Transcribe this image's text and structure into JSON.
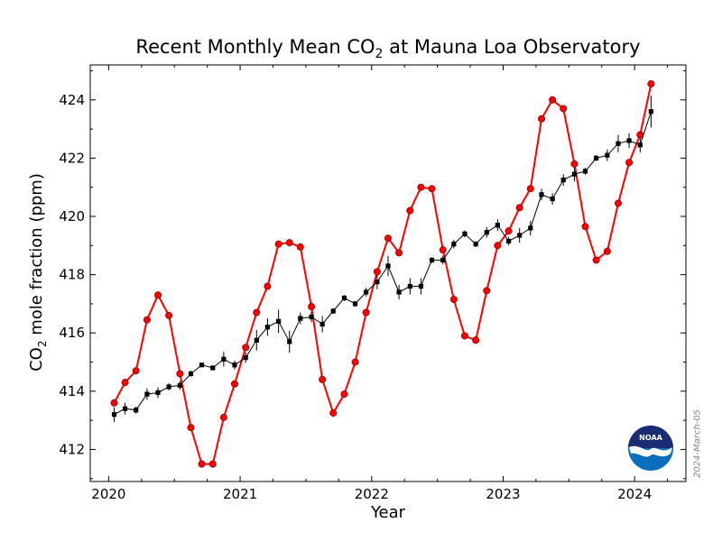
{
  "chart_data": {
    "type": "line",
    "title_prefix": "Recent Monthly Mean CO",
    "title_sub": "2",
    "title_suffix": " at Mauna Loa Observatory",
    "xlabel": "Year",
    "ylabel_prefix": "CO",
    "ylabel_sub": "2",
    "ylabel_suffix": " mole fraction (ppm)",
    "xlim": [
      2019.86,
      2024.39
    ],
    "ylim": [
      410.9,
      425.2
    ],
    "x_ticks": [
      2020,
      2021,
      2022,
      2023,
      2024
    ],
    "y_ticks": [
      412,
      414,
      416,
      418,
      420,
      422,
      424
    ],
    "stamp": "2024-March-05",
    "grid": false,
    "series": [
      {
        "name": "",
        "style": "red-circles",
        "color": "#ff0000",
        "x": [
          2020.042,
          2020.125,
          2020.208,
          2020.292,
          2020.375,
          2020.458,
          2020.542,
          2020.625,
          2020.708,
          2020.792,
          2020.875,
          2020.958,
          2021.042,
          2021.125,
          2021.208,
          2021.292,
          2021.375,
          2021.458,
          2021.542,
          2021.625,
          2021.708,
          2021.792,
          2021.875,
          2021.958,
          2022.042,
          2022.125,
          2022.208,
          2022.292,
          2022.375,
          2022.458,
          2022.542,
          2022.625,
          2022.708,
          2022.792,
          2022.875,
          2022.958,
          2023.042,
          2023.125,
          2023.208,
          2023.292,
          2023.375,
          2023.458,
          2023.542,
          2023.625,
          2023.708,
          2023.792,
          2023.875,
          2023.958,
          2024.042,
          2024.125
        ],
        "y": [
          413.6,
          414.3,
          414.7,
          416.45,
          417.3,
          416.6,
          414.6,
          412.75,
          411.5,
          411.5,
          413.1,
          414.25,
          415.5,
          416.7,
          417.6,
          419.05,
          419.1,
          418.95,
          416.9,
          414.4,
          413.25,
          413.9,
          415.0,
          416.7,
          418.1,
          419.25,
          418.75,
          420.2,
          421.0,
          420.95,
          418.85,
          417.15,
          415.9,
          415.75,
          417.45,
          419.0,
          419.5,
          420.3,
          420.95,
          423.35,
          424.0,
          423.7,
          421.8,
          419.65,
          418.5,
          418.8,
          420.45,
          421.85,
          422.8,
          424.55
        ]
      },
      {
        "name": "",
        "style": "black-squares-errorbars",
        "color": "#000000",
        "x": [
          2020.042,
          2020.125,
          2020.208,
          2020.292,
          2020.375,
          2020.458,
          2020.542,
          2020.625,
          2020.708,
          2020.792,
          2020.875,
          2020.958,
          2021.042,
          2021.125,
          2021.208,
          2021.292,
          2021.375,
          2021.458,
          2021.542,
          2021.625,
          2021.708,
          2021.792,
          2021.875,
          2021.958,
          2022.042,
          2022.125,
          2022.208,
          2022.292,
          2022.375,
          2022.458,
          2022.542,
          2022.625,
          2022.708,
          2022.792,
          2022.875,
          2022.958,
          2023.042,
          2023.125,
          2023.208,
          2023.292,
          2023.375,
          2023.458,
          2023.542,
          2023.625,
          2023.708,
          2023.792,
          2023.875,
          2023.958,
          2024.042,
          2024.125
        ],
        "y": [
          413.2,
          413.4,
          413.35,
          413.9,
          413.95,
          414.15,
          414.2,
          414.6,
          414.9,
          414.8,
          415.1,
          414.9,
          415.15,
          415.75,
          416.2,
          416.4,
          415.7,
          416.5,
          416.55,
          416.3,
          416.75,
          417.2,
          417.0,
          417.4,
          417.75,
          418.3,
          417.4,
          417.6,
          417.6,
          418.5,
          418.5,
          419.05,
          419.4,
          419.05,
          419.45,
          419.7,
          419.15,
          419.35,
          419.6,
          420.75,
          420.6,
          421.25,
          421.45,
          421.55,
          422.0,
          422.1,
          422.5,
          422.6,
          422.45,
          423.6
        ],
        "err": [
          0.25,
          0.2,
          0.12,
          0.2,
          0.18,
          0.12,
          0.15,
          0.1,
          0.07,
          0.08,
          0.25,
          0.15,
          0.18,
          0.35,
          0.3,
          0.4,
          0.38,
          0.2,
          0.18,
          0.28,
          0.1,
          0.1,
          0.1,
          0.15,
          0.25,
          0.35,
          0.25,
          0.28,
          0.28,
          0.1,
          0.15,
          0.15,
          0.12,
          0.1,
          0.18,
          0.2,
          0.15,
          0.25,
          0.25,
          0.2,
          0.2,
          0.2,
          0.25,
          0.12,
          0.1,
          0.2,
          0.3,
          0.25,
          0.25,
          0.55
        ]
      }
    ]
  },
  "logo": {
    "text": "NOAA",
    "primary_color": "#0a6ebd",
    "dark_color": "#1a2d73"
  }
}
